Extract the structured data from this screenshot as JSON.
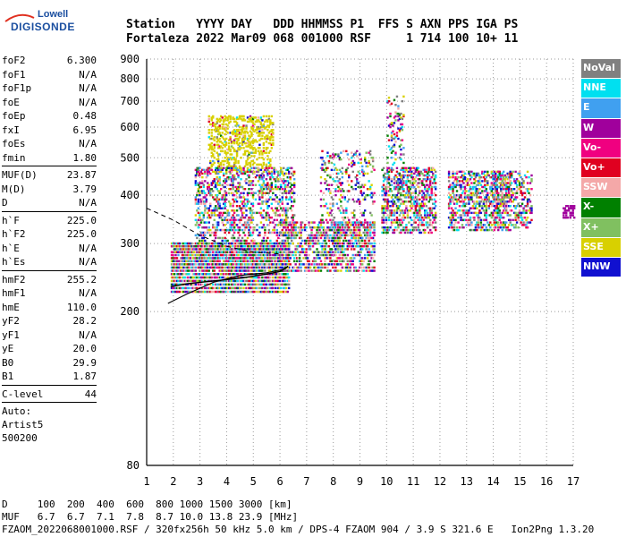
{
  "logo": {
    "line1": "Lowell",
    "line2": "DIGISONDE"
  },
  "header": {
    "labels": "Station   YYYY DAY   DDD HHMMSS P1  FFS S AXN PPS IGA PS",
    "values": "Fortaleza 2022 Mar09 068 001000 RSF     1 714 100 10+ 11"
  },
  "params": [
    {
      "label": "foF2",
      "value": "6.300"
    },
    {
      "label": "foF1",
      "value": "N/A"
    },
    {
      "label": "foF1p",
      "value": "N/A"
    },
    {
      "label": "foE",
      "value": "N/A"
    },
    {
      "label": "foEp",
      "value": "0.48"
    },
    {
      "label": "fxI",
      "value": "6.95"
    },
    {
      "label": "foEs",
      "value": "N/A"
    },
    {
      "label": "fmin",
      "value": "1.80"
    },
    {
      "sep": true
    },
    {
      "label": "MUF(D)",
      "value": "23.87"
    },
    {
      "label": "M(D)",
      "value": "3.79"
    },
    {
      "label": "D",
      "value": "N/A"
    },
    {
      "sep": true
    },
    {
      "label": "h`F",
      "value": "225.0"
    },
    {
      "label": "h`F2",
      "value": "225.0"
    },
    {
      "label": "h`E",
      "value": "N/A"
    },
    {
      "label": "h`Es",
      "value": "N/A"
    },
    {
      "sep": true
    },
    {
      "label": "hmF2",
      "value": "255.2"
    },
    {
      "label": "hmF1",
      "value": "N/A"
    },
    {
      "label": "hmE",
      "value": "110.0"
    },
    {
      "label": "yF2",
      "value": "28.2"
    },
    {
      "label": "yF1",
      "value": "N/A"
    },
    {
      "label": "yE",
      "value": "20.0"
    },
    {
      "label": "B0",
      "value": "29.9"
    },
    {
      "label": "B1",
      "value": "1.87"
    },
    {
      "sep": true
    },
    {
      "label": "C-level",
      "value": "44"
    },
    {
      "sep": true
    }
  ],
  "autoscaling": {
    "line1": "Auto:",
    "line2": "Artist5",
    "line3": "500200"
  },
  "legend": [
    {
      "label": "NoVal",
      "color": "#808080"
    },
    {
      "label": "NNE",
      "color": "#00e0f0"
    },
    {
      "label": "E",
      "color": "#40a0f0"
    },
    {
      "label": "W",
      "color": "#a0009c"
    },
    {
      "label": "Vo-",
      "color": "#f00080"
    },
    {
      "label": "Vo+",
      "color": "#e00020"
    },
    {
      "label": "SSW",
      "color": "#f4a8a8"
    },
    {
      "label": "X-",
      "color": "#008000"
    },
    {
      "label": "X+",
      "color": "#80c060"
    },
    {
      "label": "SSE",
      "color": "#d8d000"
    },
    {
      "label": "NNW",
      "color": "#1010d0"
    }
  ],
  "chart_data": {
    "type": "scatter",
    "title": "",
    "xlabel": "",
    "ylabel": "",
    "xlim": [
      1,
      17
    ],
    "ylim": [
      80,
      900
    ],
    "yscale": "log",
    "xticks": [
      1,
      2,
      3,
      4,
      5,
      6,
      7,
      8,
      9,
      10,
      11,
      12,
      13,
      14,
      15,
      16,
      17
    ],
    "yticks": [
      80,
      200,
      300,
      400,
      500,
      600,
      700,
      800,
      900
    ],
    "grid": true,
    "clusters": [
      {
        "fmin": 1.9,
        "fmax": 6.3,
        "hmin": 225,
        "hmax": 300,
        "color_mix": "mixed",
        "density": 0.9
      },
      {
        "fmin": 3.3,
        "fmax": 5.7,
        "hmin": 460,
        "hmax": 640,
        "color_mix": "SSE",
        "density": 0.3
      },
      {
        "fmin": 2.8,
        "fmax": 6.5,
        "hmin": 300,
        "hmax": 470,
        "color_mix": "mixed",
        "density": 0.35
      },
      {
        "fmin": 6.0,
        "fmax": 9.5,
        "hmin": 255,
        "hmax": 340,
        "color_mix": "mixed",
        "density": 0.55
      },
      {
        "fmin": 7.5,
        "fmax": 9.5,
        "hmin": 290,
        "hmax": 520,
        "color_mix": "mixed",
        "density": 0.18
      },
      {
        "fmin": 9.8,
        "fmax": 11.8,
        "hmin": 320,
        "hmax": 470,
        "color_mix": "mixed",
        "density": 0.45
      },
      {
        "fmin": 10.0,
        "fmax": 10.6,
        "hmin": 480,
        "hmax": 720,
        "color_mix": "mixed",
        "density": 0.15
      },
      {
        "fmin": 12.3,
        "fmax": 14.6,
        "hmin": 325,
        "hmax": 460,
        "color_mix": "mixed",
        "density": 0.4
      },
      {
        "fmin": 14.0,
        "fmax": 15.4,
        "hmin": 330,
        "hmax": 460,
        "color_mix": "mixed",
        "density": 0.35
      },
      {
        "fmin": 16.6,
        "fmax": 17.0,
        "hmin": 350,
        "hmax": 375,
        "color_mix": "W",
        "density": 0.6
      }
    ],
    "profile_curve": {
      "x": [
        1.8,
        2.5,
        3.5,
        4.5,
        5.5,
        6.2,
        6.3
      ],
      "y": [
        210,
        222,
        238,
        248,
        252,
        258,
        262
      ]
    },
    "lower_trace": {
      "x": [
        1.9,
        2.5,
        3.5,
        4.5,
        5.5,
        6.0,
        6.3
      ],
      "y": [
        232,
        236,
        240,
        244,
        250,
        254,
        262
      ]
    },
    "dashed_curve": {
      "x": [
        1.0,
        2.0,
        3.0,
        4.0,
        5.0,
        6.0
      ],
      "y": [
        370,
        345,
        315,
        295,
        285,
        282
      ]
    }
  },
  "footer": {
    "line1": "D     100  200  400  600  800 1000 1500 3000 [km]",
    "line2": "MUF   6.7  6.7  7.1  7.8  8.7 10.0 13.8 23.9 [MHz]",
    "line3": "FZAOM_2022068001000.RSF / 320fx256h 50 kHz 5.0 km / DPS-4 FZAOM 904 / 3.9 S 321.6 E   Ion2Png 1.3.20"
  }
}
